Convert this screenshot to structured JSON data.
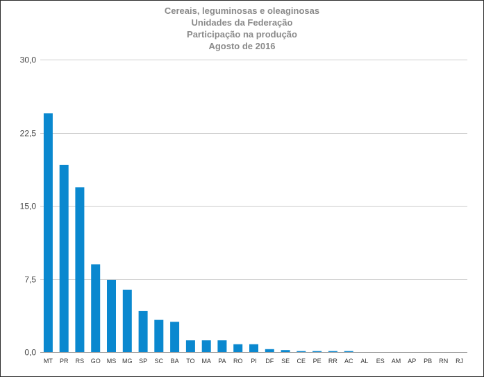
{
  "chart_data": {
    "type": "bar",
    "title_lines": [
      "Cereais, leguminosas e oleaginosas",
      "Unidades da Federação",
      "Participação na produção",
      "Agosto de 2016"
    ],
    "categories": [
      "MT",
      "PR",
      "RS",
      "GO",
      "MS",
      "MG",
      "SP",
      "SC",
      "BA",
      "TO",
      "MA",
      "PA",
      "RO",
      "PI",
      "DF",
      "SE",
      "CE",
      "PE",
      "RR",
      "AC",
      "AL",
      "ES",
      "AM",
      "AP",
      "PB",
      "RN",
      "RJ"
    ],
    "values": [
      24.5,
      19.2,
      16.9,
      9.0,
      7.4,
      6.4,
      4.2,
      3.3,
      3.1,
      1.2,
      1.2,
      1.2,
      0.8,
      0.8,
      0.3,
      0.2,
      0.1,
      0.1,
      0.1,
      0.1,
      0.0,
      0.0,
      0.0,
      0.0,
      0.0,
      0.0,
      0.0
    ],
    "ylim": [
      0,
      30
    ],
    "yticks": [
      0,
      7.5,
      15,
      22.5,
      30
    ],
    "ytick_labels": [
      "0,0",
      "7,5",
      "15,0",
      "22,5",
      "30,0"
    ],
    "grid": true,
    "bar_color": "#0a88cf",
    "grid_color": "#cccccc"
  }
}
